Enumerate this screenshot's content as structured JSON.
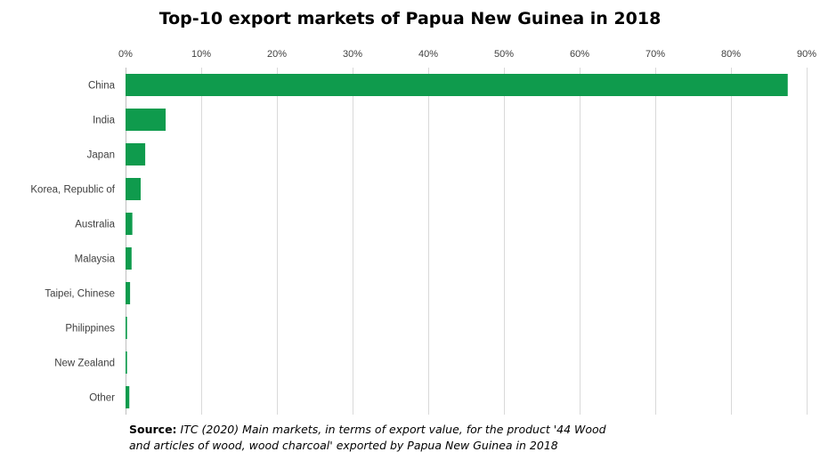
{
  "chart_data": {
    "type": "bar",
    "orientation": "horizontal",
    "title": "Top-10 export markets of Papua New Guinea in 2018",
    "categories": [
      "China",
      "India",
      "Japan",
      "Korea, Republic of",
      "Australia",
      "Malaysia",
      "Taipei, Chinese",
      "Philippines",
      "New Zealand",
      "Other"
    ],
    "values": [
      87.5,
      5.3,
      2.6,
      2.0,
      0.9,
      0.8,
      0.6,
      0.2,
      0.2,
      0.5
    ],
    "x_axis": {
      "position": "top",
      "range": [
        0,
        90
      ],
      "ticks": [
        0,
        10,
        20,
        30,
        40,
        50,
        60,
        70,
        80,
        90
      ],
      "tick_labels": [
        "0%",
        "10%",
        "20%",
        "30%",
        "40%",
        "50%",
        "60%",
        "70%",
        "80%",
        "90%"
      ]
    },
    "xlabel": "",
    "ylabel": "",
    "grid": true,
    "legend": "none",
    "bar_color": "#0f9b4d",
    "grid_color": "#d9d9d9"
  },
  "source": {
    "prefix": "Source:",
    "text": " ITC (2020) Main markets, in terms of export value, for the product '44 Wood and articles of wood, wood charcoal' exported by Papua New Guinea in 2018"
  }
}
